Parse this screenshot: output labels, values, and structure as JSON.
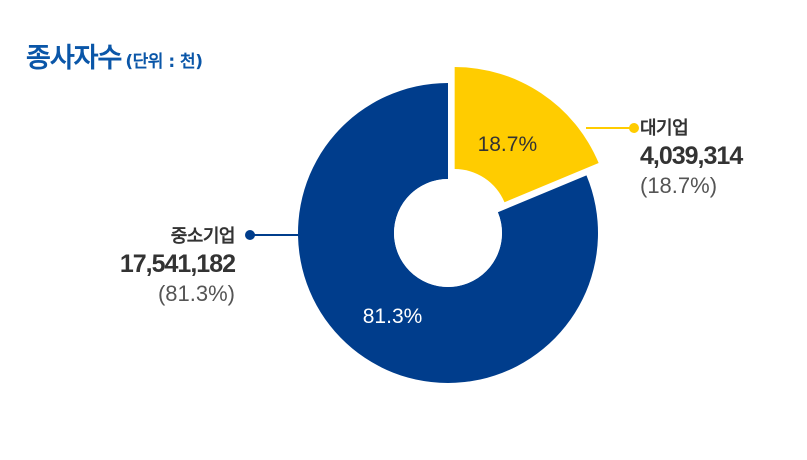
{
  "header": {
    "title": "종사자수",
    "unit": "(단위 : 천)"
  },
  "chart_data": {
    "type": "pie",
    "variant": "donut",
    "title": "종사자수",
    "unit": "(단위 : 천)",
    "series": [
      {
        "name": "대기업",
        "value": 4039314,
        "value_label": "4,039,314",
        "percent": 18.7,
        "percent_label": "18.7%",
        "percent_paren": "(18.7%)",
        "color": "#ffcc00",
        "exploded": true
      },
      {
        "name": "중소기업",
        "value": 17541182,
        "value_label": "17,541,182",
        "percent": 81.3,
        "percent_label": "81.3%",
        "percent_paren": "(81.3%)",
        "color": "#003d8c",
        "exploded": false
      }
    ]
  },
  "colors": {
    "title": "#0a56a8",
    "large_enterprise": "#ffcc00",
    "sme": "#003d8c",
    "label_on_yellow": "#333333",
    "label_on_blue": "#ffffff"
  }
}
